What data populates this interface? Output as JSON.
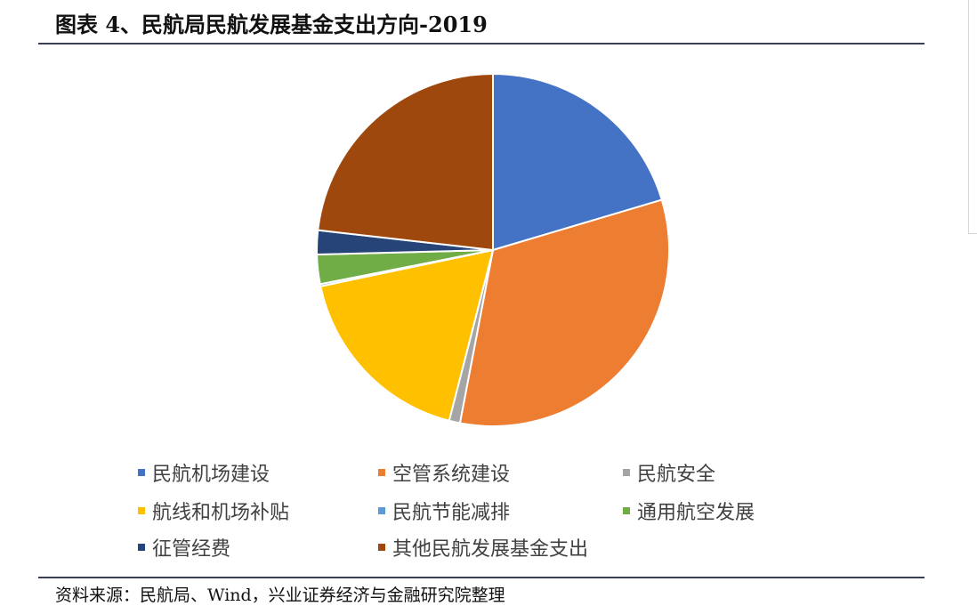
{
  "title": "图表 4、民航局民航发展基金支出方向-2019",
  "source": "资料来源：民航局、Wind，兴业证券经济与金融研究院整理",
  "chart_data": {
    "type": "pie",
    "title": "",
    "series": [
      {
        "name": "民航机场建设",
        "value": 20.4,
        "color": "#4472C4"
      },
      {
        "name": "空管系统建设",
        "value": 32.6,
        "color": "#ED7D31"
      },
      {
        "name": "民航安全",
        "value": 1.0,
        "color": "#A5A5A5"
      },
      {
        "name": "航线和机场补贴",
        "value": 17.7,
        "color": "#FFC000"
      },
      {
        "name": "民航节能减排",
        "value": 0.2,
        "color": "#5B9BD5"
      },
      {
        "name": "通用航空发展",
        "value": 2.7,
        "color": "#70AD47"
      },
      {
        "name": "征管经费",
        "value": 2.2,
        "color": "#264478"
      },
      {
        "name": "其他民航发展基金支出",
        "value": 23.2,
        "color": "#9E480E"
      }
    ],
    "legend_position": "bottom"
  }
}
